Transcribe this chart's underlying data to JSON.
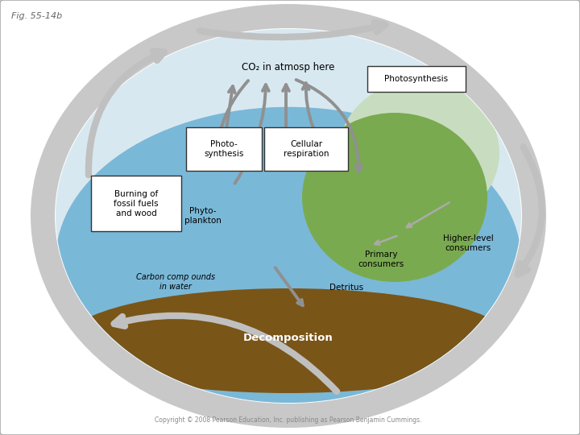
{
  "title": "Fig. 55-14b",
  "copyright": "Copyright © 2008 Pearson Education, Inc. publishing as Pearson Benjamin Cummings.",
  "bg": "#ffffff",
  "border_color": "#999999",
  "ellipse_gray": "#c8c8c8",
  "arrow_outer": "#c0c0c0",
  "arrow_inner": "#909090",
  "sky_color": "#d8e8f0",
  "water_top": "#7ab8d8",
  "water_deep": "#5090b8",
  "land_green": "#7aaa50",
  "soil_color": "#7a5518",
  "soil_dark": "#5a3a08",
  "box_edge": "#333333",
  "labels": {
    "co2": "CO₂ in atmosp here",
    "photosynthesis_tr": "Photosynthesis",
    "photosynthesis_box": "Photo-\nsynthesis",
    "cellular_respiration": "Cellular\nrespiration",
    "burning": "Burning of\nfossil fuels\nand wood",
    "phytoplankton": "Phyto-\nplankton",
    "carbon_compounds": "Carbon comp ounds\nin water",
    "detritus": "Detritus",
    "decomposition": "Decomposition",
    "primary_consumers": "Primary\nconsumers",
    "higher_level": "Higher-level\nconsumers"
  },
  "fs": 7.5,
  "title_fs": 8.0,
  "co2_fs": 8.5,
  "decomp_fs": 9.5
}
